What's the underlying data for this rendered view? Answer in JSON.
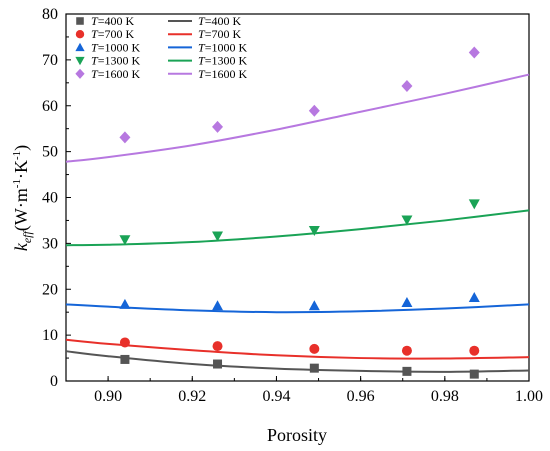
{
  "chart_data": {
    "type": "scatter",
    "xlabel": "Porosity",
    "ylabel": {
      "main": "k",
      "sub": "eff",
      "unit": "(W·m",
      "exp1": "-1",
      "mid": "·K",
      "exp2": "-1",
      "end": ")"
    },
    "xlim": [
      0.89,
      1.0
    ],
    "ylim": [
      0,
      80
    ],
    "xticks": [
      0.9,
      0.92,
      0.94,
      0.96,
      0.98,
      1.0
    ],
    "xtick_labels": [
      "0.90",
      "0.92",
      "0.94",
      "0.96",
      "0.98",
      "1.00"
    ],
    "yticks": [
      0,
      10,
      20,
      30,
      40,
      50,
      60,
      70,
      80
    ],
    "ytick_labels": [
      "0",
      "10",
      "20",
      "30",
      "40",
      "50",
      "60",
      "70",
      "80"
    ],
    "grid": false,
    "legend": {
      "placement": "top-left",
      "prefix": "T",
      "entries": [
        {
          "label": "=400 K",
          "color": "#555555"
        },
        {
          "label": "=700 K",
          "color": "#e8302a"
        },
        {
          "label": "=1000 K",
          "color": "#1565d8"
        },
        {
          "label": "=1300 K",
          "color": "#1aa356"
        },
        {
          "label": "=1600 K",
          "color": "#b778e0"
        }
      ]
    },
    "series": [
      {
        "name": "T=400 K",
        "marker": "square",
        "color": "#555555",
        "points": {
          "x": [
            0.904,
            0.926,
            0.949,
            0.971,
            0.987
          ],
          "y": [
            4.7,
            3.7,
            2.8,
            2.1,
            1.5
          ]
        },
        "fit": {
          "x": [
            0.89,
            0.9,
            0.92,
            0.94,
            0.96,
            0.98,
            1.0
          ],
          "y": [
            6.5,
            5.4,
            3.7,
            2.7,
            2.2,
            2.0,
            2.3
          ]
        }
      },
      {
        "name": "T=700 K",
        "marker": "circle",
        "color": "#e8302a",
        "points": {
          "x": [
            0.904,
            0.926,
            0.949,
            0.971,
            0.987
          ],
          "y": [
            8.4,
            7.6,
            7.0,
            6.6,
            6.6
          ]
        },
        "fit": {
          "x": [
            0.89,
            0.9,
            0.92,
            0.94,
            0.96,
            0.98,
            1.0
          ],
          "y": [
            9.0,
            8.1,
            6.7,
            5.6,
            5.0,
            4.9,
            5.2
          ]
        }
      },
      {
        "name": "T=1000 K",
        "marker": "triangle-up",
        "color": "#1565d8",
        "points": {
          "x": [
            0.904,
            0.926,
            0.949,
            0.971,
            0.987
          ],
          "y": [
            16.7,
            16.4,
            16.4,
            17.1,
            18.2
          ]
        },
        "fit": {
          "x": [
            0.89,
            0.9,
            0.92,
            0.94,
            0.96,
            0.98,
            1.0
          ],
          "y": [
            16.7,
            16.2,
            15.4,
            15.0,
            15.2,
            15.8,
            16.7
          ]
        }
      },
      {
        "name": "T=1300 K",
        "marker": "triangle-down",
        "color": "#1aa356",
        "points": {
          "x": [
            0.904,
            0.926,
            0.949,
            0.971,
            0.987
          ],
          "y": [
            30.8,
            31.6,
            32.8,
            35.1,
            38.6
          ]
        },
        "fit": {
          "x": [
            0.89,
            0.9,
            0.92,
            0.94,
            0.96,
            0.98,
            1.0
          ],
          "y": [
            29.6,
            29.7,
            30.3,
            31.5,
            33.1,
            35.0,
            37.2
          ]
        }
      },
      {
        "name": "T=1600 K",
        "marker": "diamond",
        "color": "#b778e0",
        "points": {
          "x": [
            0.904,
            0.926,
            0.949,
            0.971,
            0.987
          ],
          "y": [
            53.1,
            55.4,
            58.9,
            64.3,
            71.6
          ]
        },
        "fit": {
          "x": [
            0.89,
            0.9,
            0.92,
            0.94,
            0.96,
            0.98,
            1.0
          ],
          "y": [
            47.8,
            48.8,
            51.4,
            54.8,
            58.7,
            62.6,
            66.8
          ]
        }
      }
    ]
  }
}
